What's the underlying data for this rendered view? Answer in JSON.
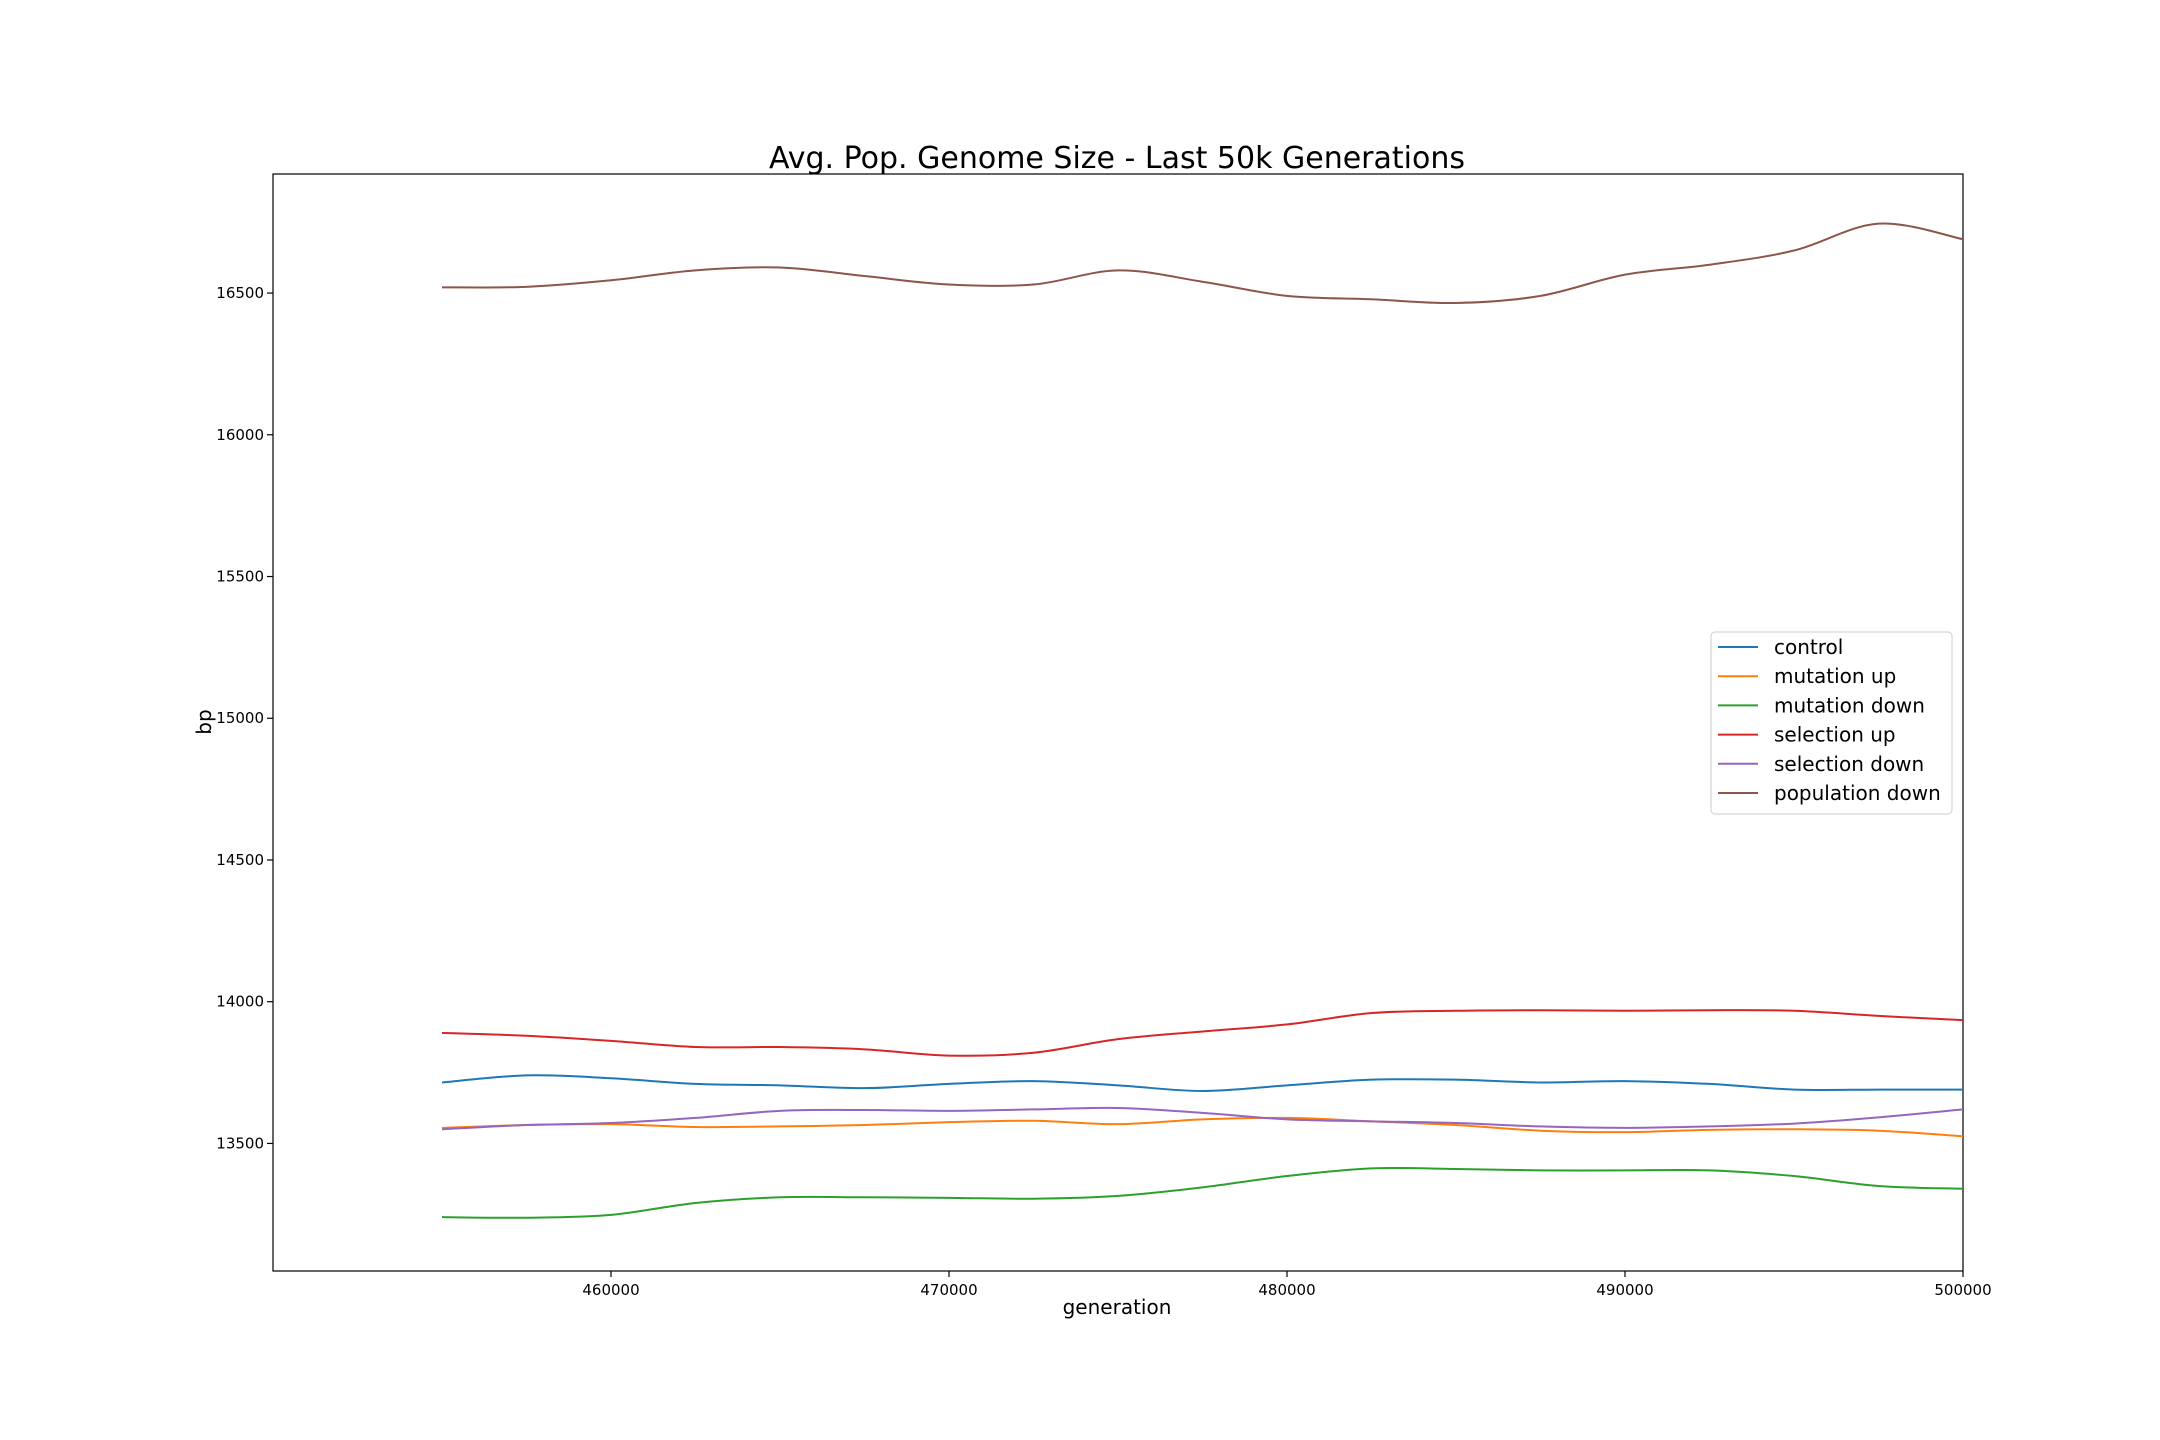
{
  "chart_data": {
    "type": "line",
    "title": "Avg. Pop. Genome Size - Last 50k Generations",
    "xlabel": "generation",
    "ylabel": "bp",
    "xlim": [
      450000,
      500000
    ],
    "ylim": [
      13050,
      16920
    ],
    "xticks": [
      460000,
      470000,
      480000,
      490000,
      500000
    ],
    "yticks": [
      13500,
      14000,
      14500,
      15000,
      15500,
      16000,
      16500
    ],
    "grid": false,
    "legend_position": "center-right",
    "x": [
      455000,
      457500,
      460000,
      462500,
      465000,
      467500,
      470000,
      472500,
      475000,
      477500,
      480000,
      482500,
      485000,
      487500,
      490000,
      492500,
      495000,
      497500,
      500000
    ],
    "series": [
      {
        "name": "control",
        "color": "#1f77b4",
        "values": [
          13715,
          13740,
          13730,
          13710,
          13705,
          13695,
          13710,
          13720,
          13705,
          13685,
          13705,
          13725,
          13725,
          13715,
          13720,
          13710,
          13690,
          13690,
          13690
        ]
      },
      {
        "name": "mutation up",
        "color": "#ff7f0e",
        "values": [
          13555,
          13565,
          13568,
          13558,
          13560,
          13565,
          13575,
          13580,
          13568,
          13585,
          13590,
          13578,
          13565,
          13545,
          13540,
          13548,
          13550,
          13545,
          13525
        ]
      },
      {
        "name": "mutation down",
        "color": "#2ca02c",
        "values": [
          13240,
          13238,
          13248,
          13290,
          13310,
          13310,
          13308,
          13305,
          13315,
          13345,
          13385,
          13412,
          13410,
          13405,
          13405,
          13405,
          13385,
          13350,
          13340
        ]
      },
      {
        "name": "selection up",
        "color": "#d62728",
        "values": [
          13890,
          13880,
          13862,
          13840,
          13840,
          13832,
          13810,
          13820,
          13868,
          13895,
          13920,
          13960,
          13968,
          13970,
          13968,
          13970,
          13968,
          13950,
          13935
        ]
      },
      {
        "name": "selection down",
        "color": "#9467bd",
        "values": [
          13550,
          13565,
          13572,
          13590,
          13615,
          13618,
          13615,
          13620,
          13625,
          13608,
          13585,
          13578,
          13572,
          13560,
          13555,
          13560,
          13570,
          13592,
          13620
        ]
      },
      {
        "name": "population down",
        "color": "#8c564b",
        "values": [
          16520,
          16522,
          16545,
          16580,
          16590,
          16560,
          16530,
          16530,
          16580,
          16540,
          16490,
          16478,
          16465,
          16490,
          16565,
          16600,
          16650,
          16745,
          16690
        ]
      }
    ]
  }
}
